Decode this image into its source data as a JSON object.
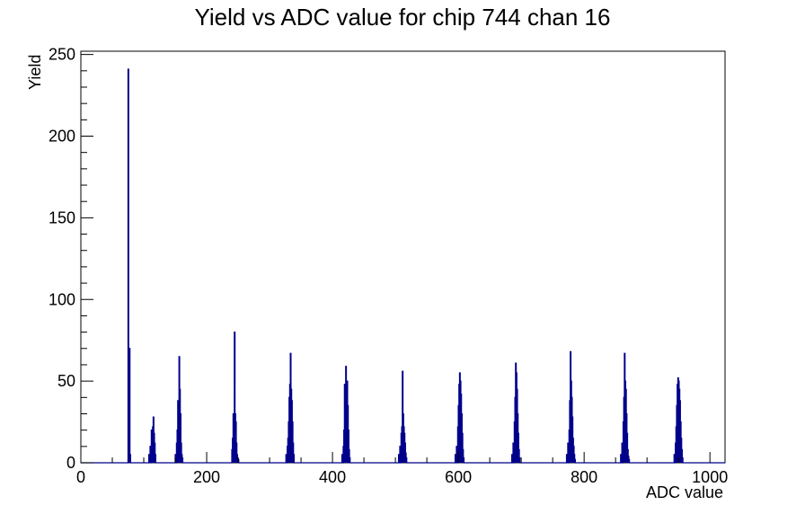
{
  "chart_data": {
    "type": "bar",
    "title": "Yield vs ADC value for chip 744 chan 16",
    "xlabel": "ADC value",
    "ylabel": "Yield",
    "xlim": [
      0,
      1024
    ],
    "ylim": [
      0,
      252
    ],
    "x_ticks": [
      0,
      200,
      400,
      600,
      800,
      1000
    ],
    "y_ticks": [
      0,
      50,
      100,
      150,
      200,
      250
    ],
    "grid": false,
    "legend": "none",
    "line_color": "#00008b",
    "series": [
      {
        "x": [
          75,
          76,
          77,
          78,
          108,
          110,
          112,
          113,
          114,
          115,
          116,
          117,
          118,
          150,
          152,
          153,
          154,
          155,
          156,
          157,
          158,
          159,
          160,
          161,
          240,
          241,
          242,
          243,
          244,
          245,
          246,
          247,
          248,
          249,
          250,
          326,
          328,
          329,
          330,
          331,
          332,
          333,
          334,
          335,
          336,
          337,
          338,
          415,
          417,
          418,
          419,
          420,
          421,
          422,
          423,
          424,
          425,
          426,
          427,
          505,
          507,
          509,
          510,
          511,
          512,
          513,
          514,
          515,
          516,
          517,
          595,
          597,
          599,
          600,
          601,
          602,
          603,
          604,
          605,
          606,
          607,
          608,
          685,
          687,
          689,
          690,
          691,
          692,
          693,
          694,
          695,
          696,
          697,
          772,
          774,
          776,
          777,
          778,
          779,
          780,
          781,
          782,
          783,
          784,
          785,
          858,
          860,
          862,
          863,
          864,
          865,
          866,
          867,
          868,
          869,
          870,
          871,
          943,
          945,
          946,
          947,
          948,
          949,
          950,
          951,
          952,
          953,
          954,
          955,
          956
        ],
        "values": [
          241,
          70,
          70,
          5,
          5,
          10,
          20,
          15,
          22,
          28,
          18,
          12,
          5,
          5,
          12,
          20,
          38,
          35,
          65,
          45,
          30,
          12,
          5,
          3,
          8,
          15,
          30,
          28,
          80,
          30,
          25,
          12,
          5,
          3,
          2,
          5,
          10,
          15,
          25,
          40,
          48,
          67,
          45,
          38,
          25,
          12,
          5,
          5,
          10,
          20,
          48,
          45,
          59,
          42,
          50,
          35,
          20,
          8,
          3,
          5,
          10,
          18,
          22,
          56,
          30,
          22,
          18,
          12,
          6,
          3,
          5,
          10,
          22,
          35,
          48,
          55,
          50,
          42,
          30,
          18,
          8,
          3,
          5,
          12,
          25,
          40,
          61,
          55,
          45,
          30,
          18,
          8,
          3,
          5,
          12,
          20,
          38,
          68,
          50,
          40,
          28,
          15,
          10,
          5,
          2,
          5,
          12,
          25,
          40,
          67,
          50,
          45,
          30,
          18,
          8,
          4,
          2,
          5,
          12,
          22,
          35,
          48,
          52,
          50,
          45,
          38,
          25,
          15,
          8,
          3
        ]
      }
    ]
  }
}
